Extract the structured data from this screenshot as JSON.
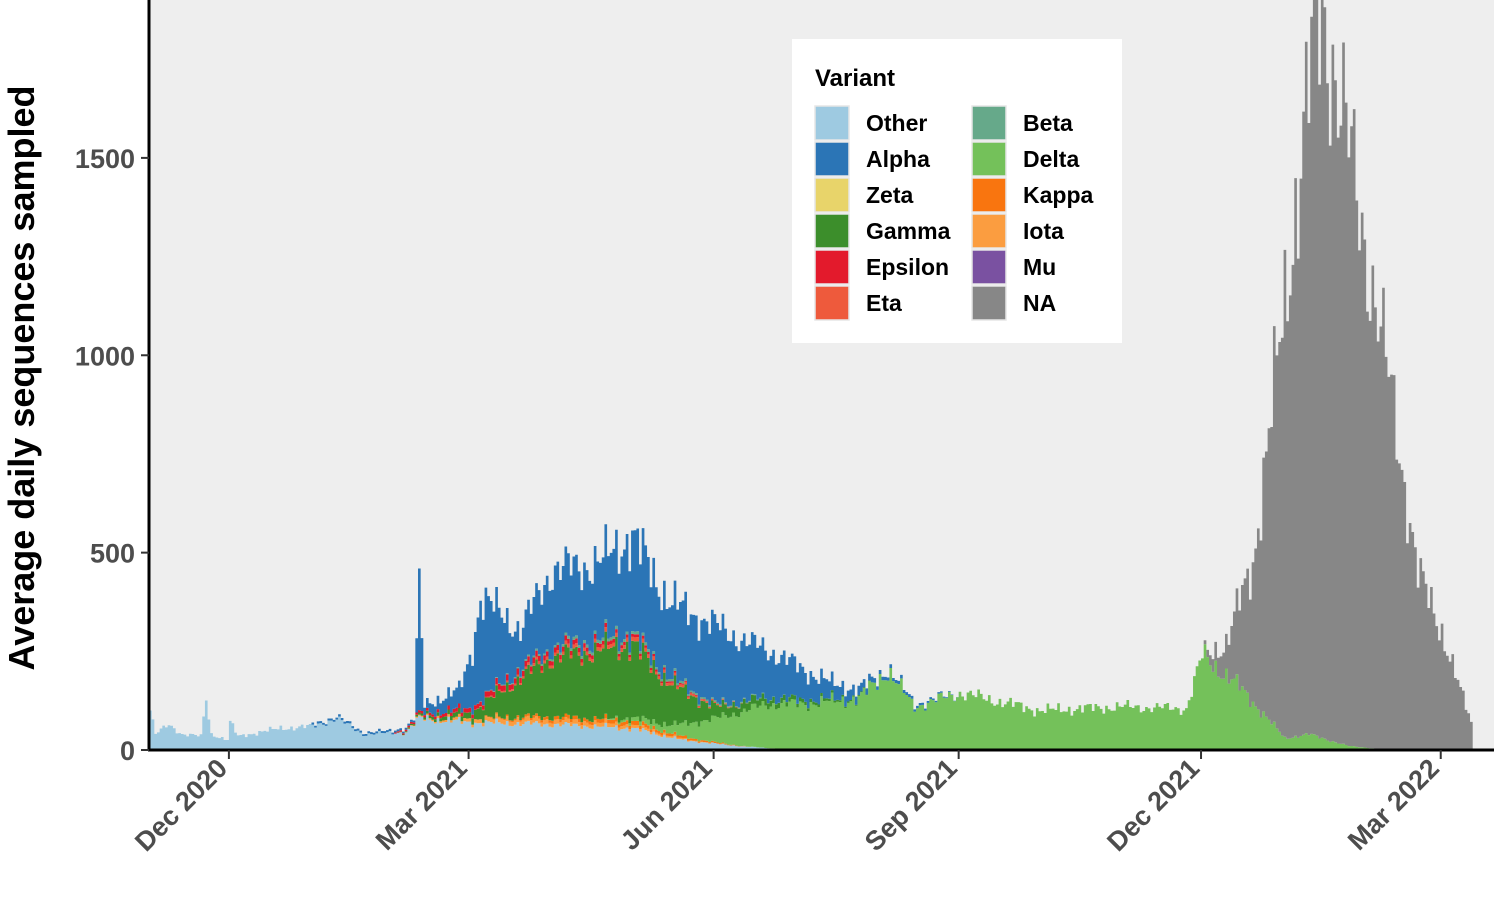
{
  "chart_data": {
    "type": "area",
    "title": "",
    "ylabel": "Average daily sequences sampled",
    "xlabel": "",
    "x_start": "2020-11-01",
    "x_end": "2022-03-12",
    "xlim": [
      "2020-11-01",
      "2022-03-21"
    ],
    "ylim": [
      0,
      1900
    ],
    "yticks": [
      0,
      500,
      1000,
      1500
    ],
    "xticks": [
      {
        "date": "2020-12-01",
        "label": "Dec 2020"
      },
      {
        "date": "2021-03-01",
        "label": "Mar 2021"
      },
      {
        "date": "2021-06-01",
        "label": "Jun 2021"
      },
      {
        "date": "2021-09-01",
        "label": "Sep 2021"
      },
      {
        "date": "2021-12-01",
        "label": "Dec 2021"
      },
      {
        "date": "2022-03-01",
        "label": "Mar 2022"
      }
    ],
    "grid": false,
    "legend": {
      "title": "Variant",
      "placement": "top-center",
      "columns": 2,
      "entries": [
        {
          "label": "Other",
          "color": "#9ECAE1"
        },
        {
          "label": "Alpha",
          "color": "#2B75B6"
        },
        {
          "label": "Zeta",
          "color": "#E8D46A"
        },
        {
          "label": "Gamma",
          "color": "#3C8E2B"
        },
        {
          "label": "Epsilon",
          "color": "#E31A2C"
        },
        {
          "label": "Eta",
          "color": "#EE5A3C"
        },
        {
          "label": "Beta",
          "color": "#66A98A"
        },
        {
          "label": "Delta",
          "color": "#74C15A"
        },
        {
          "label": "Kappa",
          "color": "#F9750F"
        },
        {
          "label": "Iota",
          "color": "#FB9D40"
        },
        {
          "label": "Mu",
          "color": "#7A51A1"
        },
        {
          "label": "NA",
          "color": "#878787"
        }
      ]
    },
    "series_shape": {
      "Other": [
        [
          "2020-11-01",
          100
        ],
        [
          "2020-11-03",
          40
        ],
        [
          "2020-11-08",
          65
        ],
        [
          "2020-11-13",
          40
        ],
        [
          "2020-11-20",
          35
        ],
        [
          "2020-11-22",
          130
        ],
        [
          "2020-11-24",
          40
        ],
        [
          "2020-11-30",
          25
        ],
        [
          "2020-12-01",
          70
        ],
        [
          "2020-12-04",
          35
        ],
        [
          "2020-12-20",
          55
        ],
        [
          "2021-01-01",
          60
        ],
        [
          "2021-01-10",
          80
        ],
        [
          "2021-01-20",
          40
        ],
        [
          "2021-02-05",
          45
        ],
        [
          "2021-02-10",
          80
        ],
        [
          "2021-03-01",
          70
        ],
        [
          "2021-04-01",
          65
        ],
        [
          "2021-05-01",
          55
        ],
        [
          "2021-05-20",
          25
        ],
        [
          "2021-06-10",
          10
        ],
        [
          "2021-06-25",
          3
        ],
        [
          "2021-07-05",
          0
        ]
      ],
      "Alpha": [
        [
          "2021-01-01",
          5
        ],
        [
          "2021-02-08",
          5
        ],
        [
          "2021-02-10",
          330
        ],
        [
          "2021-02-12",
          20
        ],
        [
          "2021-02-25",
          50
        ],
        [
          "2021-03-02",
          150
        ],
        [
          "2021-03-05",
          260
        ],
        [
          "2021-03-20",
          100
        ],
        [
          "2021-04-01",
          200
        ],
        [
          "2021-04-10",
          190
        ],
        [
          "2021-04-20",
          200
        ],
        [
          "2021-05-01",
          250
        ],
        [
          "2021-05-15",
          190
        ],
        [
          "2021-06-01",
          200
        ],
        [
          "2021-06-15",
          140
        ],
        [
          "2021-07-01",
          90
        ],
        [
          "2021-07-15",
          40
        ],
        [
          "2021-08-01",
          10
        ],
        [
          "2021-08-20",
          5
        ],
        [
          "2021-09-01",
          0
        ]
      ],
      "Gamma": [
        [
          "2021-02-01",
          0
        ],
        [
          "2021-03-01",
          15
        ],
        [
          "2021-04-01",
          150
        ],
        [
          "2021-05-01",
          190
        ],
        [
          "2021-05-10",
          130
        ],
        [
          "2021-06-01",
          30
        ],
        [
          "2021-07-01",
          10
        ],
        [
          "2021-08-01",
          0
        ]
      ],
      "Epsilon": [
        [
          "2021-02-01",
          3
        ],
        [
          "2021-03-15",
          15
        ],
        [
          "2021-04-20",
          10
        ],
        [
          "2021-06-01",
          0
        ]
      ],
      "Eta": [
        [
          "2021-03-01",
          0
        ],
        [
          "2021-04-01",
          8
        ],
        [
          "2021-05-01",
          10
        ],
        [
          "2021-06-15",
          0
        ]
      ],
      "Beta": [
        [
          "2021-03-01",
          0
        ],
        [
          "2021-04-15",
          8
        ],
        [
          "2021-05-15",
          6
        ],
        [
          "2021-06-30",
          0
        ]
      ],
      "Delta": [
        [
          "2021-04-20",
          0
        ],
        [
          "2021-05-15",
          20
        ],
        [
          "2021-06-01",
          60
        ],
        [
          "2021-06-20",
          110
        ],
        [
          "2021-07-10",
          120
        ],
        [
          "2021-07-25",
          130
        ],
        [
          "2021-08-05",
          200
        ],
        [
          "2021-08-15",
          110
        ],
        [
          "2021-09-01",
          145
        ],
        [
          "2021-10-01",
          100
        ],
        [
          "2021-11-01",
          110
        ],
        [
          "2021-11-25",
          105
        ],
        [
          "2021-12-01",
          240
        ],
        [
          "2021-12-15",
          160
        ],
        [
          "2022-01-01",
          30
        ],
        [
          "2022-01-10",
          40
        ],
        [
          "2022-01-25",
          10
        ],
        [
          "2022-02-10",
          0
        ]
      ],
      "Kappa": [
        [
          "2021-03-01",
          0
        ],
        [
          "2021-04-01",
          8
        ],
        [
          "2021-05-01",
          10
        ],
        [
          "2021-06-15",
          0
        ]
      ],
      "Iota": [
        [
          "2021-02-01",
          0
        ],
        [
          "2021-03-15",
          12
        ],
        [
          "2021-04-20",
          10
        ],
        [
          "2021-06-01",
          0
        ]
      ],
      "NA": [
        [
          "2021-12-01",
          0
        ],
        [
          "2021-12-10",
          80
        ],
        [
          "2021-12-20",
          350
        ],
        [
          "2022-01-01",
          1100
        ],
        [
          "2022-01-10",
          1650
        ],
        [
          "2022-01-15",
          1850
        ],
        [
          "2022-01-20",
          1700
        ],
        [
          "2022-02-01",
          1250
        ],
        [
          "2022-02-10",
          900
        ],
        [
          "2022-02-20",
          450
        ],
        [
          "2022-03-01",
          300
        ],
        [
          "2022-03-08",
          150
        ],
        [
          "2022-03-12",
          70
        ]
      ]
    }
  }
}
